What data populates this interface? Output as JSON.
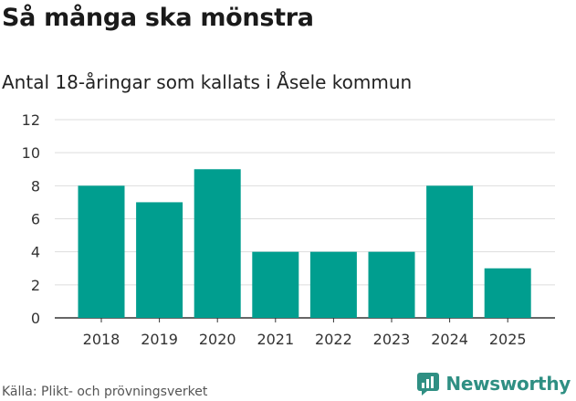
{
  "title": "Så många ska mönstra",
  "subtitle": "Antal 18-åringar som kallats i Åsele kommun",
  "source": "Källa: Plikt- och prövningsverket",
  "brand": "Newsworthy",
  "colors": {
    "bar": "#009e8f",
    "grid": "#dddddd",
    "brand": "#2f8f83"
  },
  "chart_data": {
    "type": "bar",
    "title": "Så många ska mönstra",
    "subtitle": "Antal 18-åringar som kallats i Åsele kommun",
    "categories": [
      "2018",
      "2019",
      "2020",
      "2021",
      "2022",
      "2023",
      "2024",
      "2025"
    ],
    "values": [
      8,
      7,
      9,
      4,
      4,
      4,
      8,
      3
    ],
    "xlabel": "",
    "ylabel": "",
    "ylim": [
      0,
      12
    ],
    "yticks": [
      0,
      2,
      4,
      6,
      8,
      10,
      12
    ],
    "grid": true,
    "legend": "none"
  }
}
